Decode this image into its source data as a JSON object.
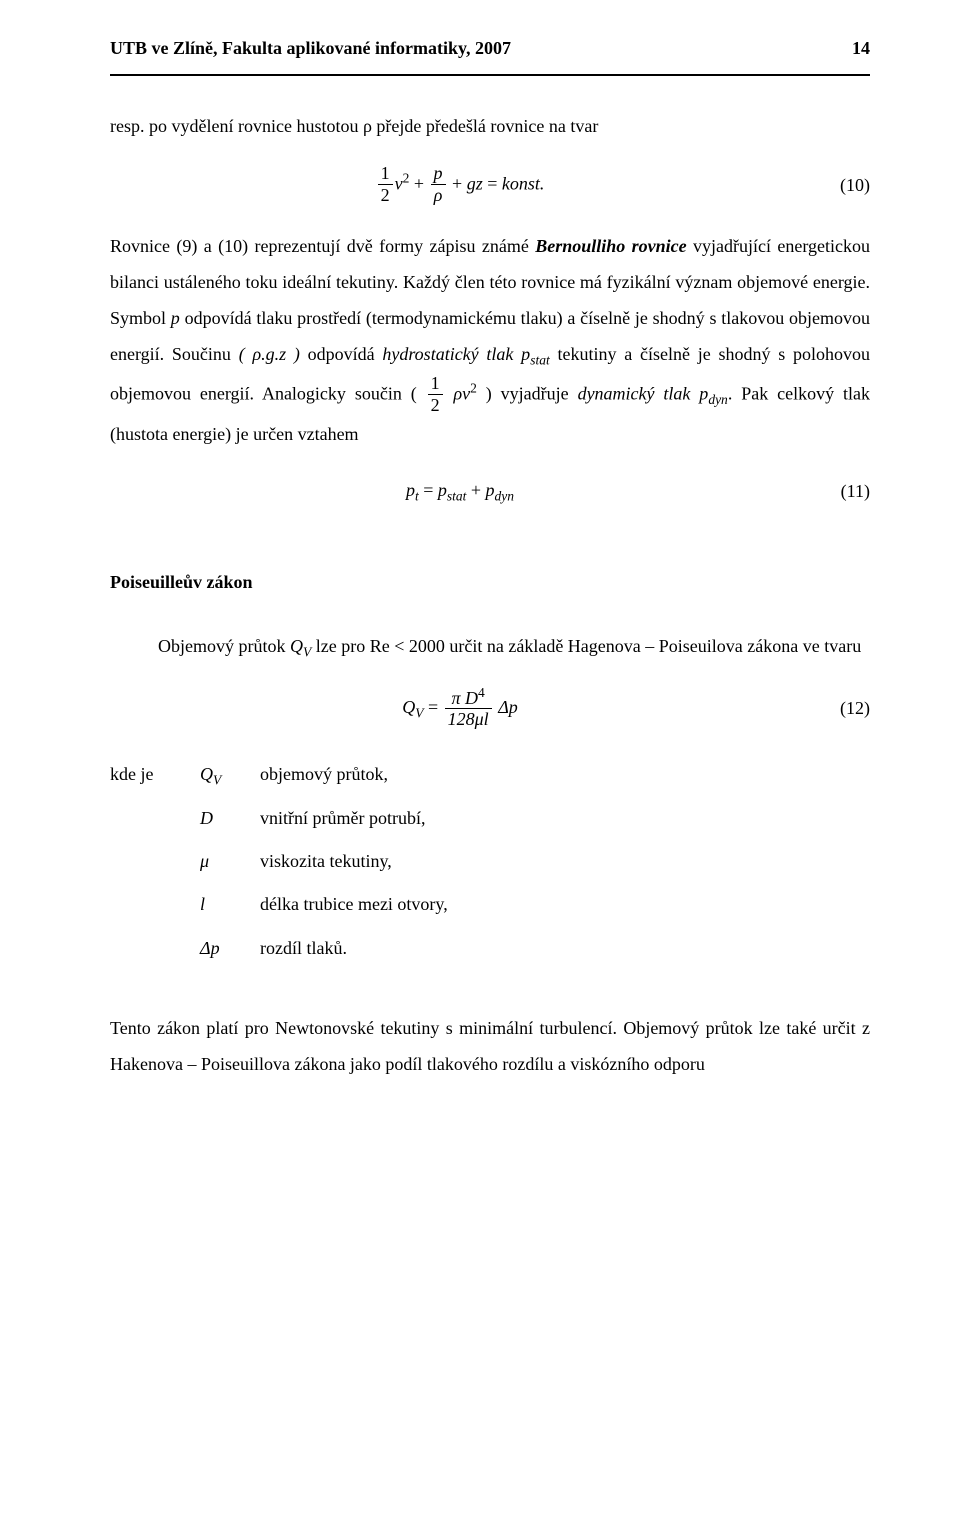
{
  "header": {
    "left": "UTB ve Zlíně, Fakulta aplikované informatiky, 2007",
    "page": "14"
  },
  "p1": "resp. po vydělení rovnice hustotou ρ  přejde předešlá rovnice na tvar",
  "eq10": {
    "frac1_num": "1",
    "frac1_den": "2",
    "v": "v",
    "v_sup": "2",
    "plus1": " + ",
    "frac2_num": "p",
    "frac2_den": "ρ",
    "plus2": " + ",
    "gz": "gz",
    "eq": " = ",
    "konst": "konst.",
    "num": "(10)"
  },
  "p2a": "Rovnice (9) a (10) reprezentují dvě formy zápisu známé ",
  "p2b": "Bernoulliho rovnice",
  "p2c": "  vyjadřující energetickou bilanci ustáleného toku ideální tekutiny. Každý člen této rovnice má fyzikální význam objemové energie. Symbol ",
  "p2d": "p",
  "p2e": " odpovídá tlaku prostředí (termodynamickému tlaku) a  číselně  je  shodný  s   tlakovou  objemovou  energií.  Součinu ",
  "p2f": "( ρ.g.z )",
  "p2g": "   odpovídá ",
  "p2h": "hydrostatický  tlak  p",
  "p2h_sub": "stat",
  "p2i": "  tekutiny  a  číselně  je  shodný  s polohovou  objemovou  energií. Analogicky  součin  ( ",
  "p2i_frac_num": "1",
  "p2i_frac_den": "2",
  "p2i_rho": " ρv",
  "p2i_sup": "2",
  "p2j": " )  vyjadřuje  ",
  "p2k": "dynamický  tlak  p",
  "p2k_sub": "dyn",
  "p2l": ".  Pak  celkový  tlak  (hustota energie) je určen vztahem",
  "eq11": {
    "lhs": "p",
    "lhs_sub": "t",
    "eq": " = ",
    "a": "p",
    "a_sub": "stat",
    "plus": " + ",
    "b": "p",
    "b_sub": "dyn",
    "num": "(11)"
  },
  "poiseuille_title": "Poiseuilleův zákon",
  "p3a": "Objemový průtok ",
  "p3b": "Q",
  "p3b_sub": "V",
  "p3c": " lze pro Re < 2000 určit na základě Hagenova – Poiseuilova zákona ve tvaru",
  "eq12": {
    "Q": "Q",
    "Q_sub": "V",
    "eq": " = ",
    "frac_num_pi": "π D",
    "frac_num_sup": "4",
    "frac_den": "128μl",
    "dp": " Δp",
    "num": "(12)"
  },
  "def_label": "kde je",
  "defs": {
    "d1_sym": "Q",
    "d1_sub": "V",
    "d1_desc": "objemový průtok,",
    "d2_sym": "D",
    "d2_desc": "vnitřní průměr potrubí,",
    "d3_sym": "μ",
    "d3_desc": "viskozita tekutiny,",
    "d4_sym": "l",
    "d4_desc": "délka trubice mezi otvory,",
    "d5_sym": "Δp",
    "d5_desc": "rozdíl tlaků."
  },
  "p4": "Tento zákon platí pro Newtonovské tekutiny s minimální turbulencí. Objemový průtok lze také určit z Hakenova – Poiseuillova zákona jako podíl tlakového rozdílu a viskózního odporu"
}
